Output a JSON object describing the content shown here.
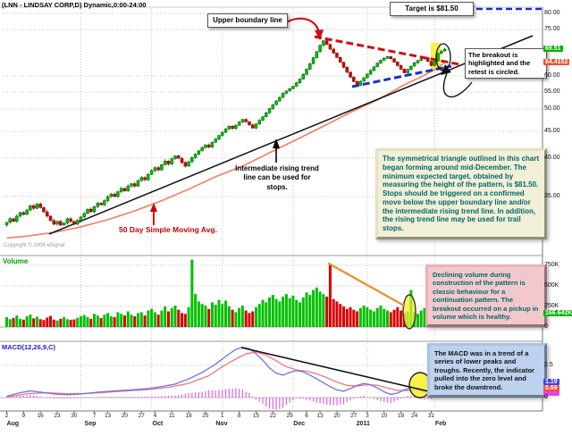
{
  "title": "(LNN - LINDSAY CORP,D) Dynamic,0:00-24:00",
  "copyright": "Copyright © 2006 eSignal.",
  "panes": {
    "volume_label": "Volume",
    "macd_label": "MACD(12,26,9,C)"
  },
  "annotations": {
    "upper_boundary": "Upper boundary line",
    "target": "Target is $81.50",
    "breakout": "The breakout is highlighted and the retest is circled.",
    "triangle_note": "The symmetrical triangle outlined in this chart began forming around mid-December. The minimum expected target, obtained by measuring the height of the pattern, is $81.50. Stops should be triggered on a confirmed move below the upper boundary line and/or the intermediate rising trend line. In addition, the rising trend line may be used for trail stops.",
    "volume_note": "Declining volume during construction of the pattern is classic behaviour for a continuation pattern. The breakout occurred on a pickup in volume which is healthy.",
    "macd_note": "The MACD was in a trend of a series of lower peaks and troughs. Recently, the indicator pulled into the zero level and broke the downtrend.",
    "trendline_note": "Intermediate rising trend line can be used for stops.",
    "ma_note": "50 Day Simple Moving Avg."
  },
  "axes": {
    "price_labels": [
      {
        "t": "80.00",
        "p": 80,
        "grid": true
      },
      {
        "t": "75.00",
        "p": 75,
        "grid": true
      },
      {
        "t": "69.51",
        "p": 69.51,
        "hl": "green"
      },
      {
        "t": "64.4152",
        "p": 64.4152,
        "hl": "red"
      },
      {
        "t": "60.00",
        "p": 60,
        "grid": true
      },
      {
        "t": "55.00",
        "p": 55,
        "grid": true
      },
      {
        "t": "50.00",
        "p": 50,
        "grid": true
      },
      {
        "t": "45.00",
        "p": 45,
        "grid": true
      },
      {
        "t": "40.00",
        "p": 40,
        "grid": true
      },
      {
        "t": "35.00",
        "p": 35,
        "grid": true
      }
    ],
    "volume_labels": [
      {
        "t": "750K",
        "v": 750,
        "grid": true
      },
      {
        "t": "500K",
        "v": 500,
        "grid": true
      },
      {
        "t": "250K",
        "v": 250,
        "grid": true
      },
      {
        "t": "166.642K",
        "v": 166.642,
        "hl": "green"
      },
      {
        "t": "0",
        "v": 0
      }
    ],
    "macd_labels": [
      {
        "t": "2.5",
        "v": 2.5,
        "grid": true
      },
      {
        "t": "",
        "v": 0.42,
        "hl": "magenta"
      },
      {
        "t": "1.19",
        "v": 1.19,
        "hl": "blue"
      },
      {
        "t": "0.69",
        "v": 0.69,
        "hl": "red"
      },
      {
        "t": "0",
        "v": 0
      }
    ],
    "day_ticks": [
      {
        "t": "2",
        "i": 0
      },
      {
        "t": "9",
        "i": 5
      },
      {
        "t": "16",
        "i": 10
      },
      {
        "t": "23",
        "i": 15
      },
      {
        "t": "30",
        "i": 20
      },
      {
        "t": "7",
        "i": 26
      },
      {
        "t": "13",
        "i": 30
      },
      {
        "t": "20",
        "i": 35
      },
      {
        "t": "27",
        "i": 40
      },
      {
        "t": "4",
        "i": 44
      },
      {
        "t": "11",
        "i": 49
      },
      {
        "t": "18",
        "i": 54
      },
      {
        "t": "25",
        "i": 59
      },
      {
        "t": "1",
        "i": 64
      },
      {
        "t": "8",
        "i": 69
      },
      {
        "t": "15",
        "i": 74
      },
      {
        "t": "22",
        "i": 79
      },
      {
        "t": "29",
        "i": 84
      },
      {
        "t": "6",
        "i": 89
      },
      {
        "t": "13",
        "i": 93
      },
      {
        "t": "20",
        "i": 98
      },
      {
        "t": "27",
        "i": 103
      },
      {
        "t": "3",
        "i": 107
      },
      {
        "t": "10",
        "i": 112
      },
      {
        "t": "18",
        "i": 117
      },
      {
        "t": "24",
        "i": 121
      },
      {
        "t": "31",
        "i": 126
      }
    ],
    "month_ticks": [
      {
        "t": "Aug",
        "i": 1
      },
      {
        "t": "Sep",
        "i": 24
      },
      {
        "t": "Oct",
        "i": 44
      },
      {
        "t": "Nov",
        "i": 63
      },
      {
        "t": "Dec",
        "i": 86
      },
      {
        "t": "2011",
        "i": 105
      },
      {
        "t": "Feb",
        "i": 128
      }
    ]
  },
  "chart_data": {
    "type": "candlestick",
    "symbol": "LNN - LINDSAY CORP",
    "interval": "Daily",
    "last_price": 69.51,
    "ma50_value": 64.4152,
    "last_volume_k": 166.642,
    "macd_value": 1.19,
    "signal_value": 0.69,
    "target_price": 81.5,
    "price_scale_anchors": [
      [
        80,
        15
      ],
      [
        75,
        33
      ],
      [
        69.51,
        55
      ],
      [
        64.4152,
        70
      ],
      [
        60,
        85
      ],
      [
        55,
        103
      ],
      [
        50,
        122
      ],
      [
        45,
        147
      ],
      [
        40,
        177
      ],
      [
        35,
        220
      ]
    ],
    "closes": [
      32.0,
      32.4,
      32.1,
      32.7,
      33.1,
      32.9,
      33.4,
      33.9,
      33.6,
      34.1,
      33.7,
      33.2,
      32.7,
      32.2,
      31.8,
      32.1,
      31.7,
      31.9,
      32.4,
      32.1,
      31.8,
      32.2,
      32.6,
      33.0,
      33.5,
      33.2,
      33.8,
      34.2,
      34.0,
      34.5,
      35.0,
      35.3,
      35.0,
      35.6,
      36.0,
      35.7,
      36.3,
      36.6,
      36.3,
      37.0,
      37.4,
      37.1,
      37.8,
      38.3,
      38.7,
      38.4,
      39.1,
      39.6,
      39.2,
      39.9,
      40.4,
      40.0,
      39.4,
      38.9,
      39.5,
      40.1,
      40.7,
      41.3,
      41.9,
      42.4,
      42.0,
      42.9,
      43.5,
      44.2,
      44.8,
      45.5,
      46.1,
      45.6,
      46.3,
      47.0,
      47.6,
      47.1,
      46.4,
      45.7,
      46.6,
      47.4,
      48.2,
      49.1,
      50.1,
      51.2,
      52.3,
      53.4,
      54.6,
      55.3,
      56.0,
      56.8,
      57.8,
      59.0,
      60.5,
      62.2,
      64.0,
      66.2,
      68.5,
      70.5,
      71.8,
      70.8,
      69.5,
      68.0,
      66.3,
      64.5,
      62.8,
      61.2,
      59.6,
      58.2,
      57.1,
      58.3,
      59.4,
      60.6,
      61.8,
      63.0,
      64.2,
      65.3,
      66.0,
      66.6,
      65.8,
      64.6,
      63.4,
      62.2,
      61.0,
      62.1,
      63.2,
      64.3,
      65.2,
      65.8,
      66.2,
      64.8,
      63.4,
      65.0,
      67.8,
      68.8,
      69.51
    ],
    "volumes_k": [
      120,
      95,
      110,
      140,
      100,
      90,
      130,
      150,
      105,
      125,
      95,
      85,
      115,
      135,
      90,
      80,
      100,
      120,
      95,
      88,
      92,
      110,
      130,
      145,
      120,
      100,
      160,
      140,
      110,
      150,
      170,
      130,
      120,
      180,
      160,
      140,
      190,
      150,
      130,
      170,
      180,
      140,
      200,
      220,
      180,
      150,
      200,
      250,
      190,
      230,
      260,
      210,
      170,
      160,
      240,
      820,
      400,
      310,
      280,
      260,
      220,
      300,
      270,
      330,
      280,
      320,
      250,
      210,
      180,
      230,
      260,
      200,
      170,
      190,
      240,
      280,
      330,
      300,
      360,
      390,
      340,
      310,
      370,
      400,
      350,
      380,
      330,
      300,
      360,
      420,
      390,
      450,
      480,
      430,
      400,
      370,
      760,
      340,
      310,
      280,
      250,
      220,
      240,
      210,
      190,
      230,
      260,
      240,
      210,
      190,
      230,
      260,
      220,
      200,
      180,
      210,
      240,
      200,
      170,
      190,
      450,
      180,
      160,
      200,
      230,
      260,
      170,
      280,
      340,
      260,
      167
    ],
    "ma50_points": [
      [
        0,
        30.3
      ],
      [
        6,
        30.5
      ],
      [
        14,
        30.9
      ],
      [
        22,
        31.5
      ],
      [
        30,
        32.3
      ],
      [
        38,
        33.3
      ],
      [
        46,
        34.5
      ],
      [
        54,
        35.9
      ],
      [
        62,
        37.5
      ],
      [
        70,
        38.9
      ],
      [
        78,
        40.95
      ],
      [
        86,
        43.4
      ],
      [
        94,
        46.1
      ],
      [
        102,
        49.2
      ],
      [
        110,
        52.6
      ],
      [
        118,
        57.2
      ],
      [
        123,
        59.7
      ],
      [
        127,
        62.0
      ],
      [
        130,
        64.41
      ]
    ],
    "macd_points": [
      [
        0,
        0.1
      ],
      [
        4,
        0.38
      ],
      [
        7,
        0.52
      ],
      [
        10,
        0.42
      ],
      [
        14,
        0.28
      ],
      [
        18,
        0.22
      ],
      [
        22,
        0.28
      ],
      [
        27,
        0.42
      ],
      [
        32,
        0.52
      ],
      [
        37,
        0.6
      ],
      [
        42,
        0.7
      ],
      [
        46,
        0.85
      ],
      [
        50,
        1.05
      ],
      [
        54,
        1.45
      ],
      [
        58,
        1.95
      ],
      [
        62,
        2.6
      ],
      [
        65,
        3.2
      ],
      [
        68,
        3.75
      ],
      [
        70,
        3.9
      ],
      [
        72,
        3.8
      ],
      [
        74,
        3.4
      ],
      [
        76,
        2.9
      ],
      [
        78,
        2.3
      ],
      [
        80,
        1.9
      ],
      [
        82,
        1.75
      ],
      [
        84,
        1.95
      ],
      [
        86,
        2.1
      ],
      [
        88,
        2.0
      ],
      [
        90,
        1.75
      ],
      [
        92,
        1.45
      ],
      [
        94,
        1.15
      ],
      [
        96,
        0.85
      ],
      [
        98,
        0.6
      ],
      [
        100,
        0.5
      ],
      [
        102,
        0.7
      ],
      [
        104,
        0.95
      ],
      [
        106,
        1.1
      ],
      [
        108,
        1.0
      ],
      [
        110,
        0.75
      ],
      [
        112,
        0.45
      ],
      [
        114,
        0.25
      ],
      [
        116,
        0.35
      ],
      [
        118,
        0.6
      ],
      [
        120,
        0.75
      ],
      [
        122,
        0.6
      ],
      [
        124,
        0.4
      ],
      [
        126,
        0.45
      ],
      [
        128,
        0.8
      ],
      [
        130,
        1.19
      ]
    ],
    "signal_points": [
      [
        0,
        0.05
      ],
      [
        6,
        0.3
      ],
      [
        12,
        0.38
      ],
      [
        18,
        0.3
      ],
      [
        24,
        0.32
      ],
      [
        30,
        0.42
      ],
      [
        36,
        0.52
      ],
      [
        42,
        0.62
      ],
      [
        48,
        0.8
      ],
      [
        54,
        1.1
      ],
      [
        60,
        1.7
      ],
      [
        64,
        2.4
      ],
      [
        68,
        3.0
      ],
      [
        71,
        3.4
      ],
      [
        74,
        3.55
      ],
      [
        77,
        3.3
      ],
      [
        80,
        2.85
      ],
      [
        83,
        2.4
      ],
      [
        86,
        2.15
      ],
      [
        89,
        2.05
      ],
      [
        92,
        1.85
      ],
      [
        95,
        1.55
      ],
      [
        98,
        1.2
      ],
      [
        101,
        0.95
      ],
      [
        104,
        0.9
      ],
      [
        107,
        1.0
      ],
      [
        110,
        0.95
      ],
      [
        113,
        0.75
      ],
      [
        116,
        0.55
      ],
      [
        119,
        0.55
      ],
      [
        122,
        0.65
      ],
      [
        125,
        0.55
      ],
      [
        127,
        0.55
      ],
      [
        130,
        0.69
      ]
    ],
    "overlays": {
      "trendline": [
        [
          55,
          262
        ],
        [
          596,
          40
        ]
      ],
      "upper_dashed": [
        [
          352,
          41
        ],
        [
          514,
          72
        ]
      ],
      "lower_dashed": [
        [
          394,
          97
        ],
        [
          505,
          74
        ]
      ],
      "target_dashed": [
        [
          533,
          10
        ],
        [
          606,
          10
        ]
      ],
      "volume_trend": [
        [
          368,
          295
        ],
        [
          452,
          342
        ]
      ],
      "macd_trend": [
        [
          270,
          389
        ],
        [
          505,
          444
        ]
      ]
    },
    "highlights": {
      "price_band": [
        482,
        48,
        11,
        30
      ],
      "price_circle": [
        496,
        64,
        8,
        15
      ],
      "volume_circle": [
        458,
        349,
        7,
        19
      ],
      "macd_circle": [
        470,
        431,
        12,
        14
      ]
    }
  },
  "colors": {
    "up": "#00C000",
    "up_edge": "#006000",
    "down": "#D80000",
    "down_edge": "#800000",
    "ma": "#F08060",
    "trendline": "#111111",
    "dashed_red": "#CC1010",
    "dashed_blue": "#2030C0",
    "orange": "#F09030",
    "hist": "#E060E0",
    "macd_line": "#7070F0",
    "signal_line": "#F07878",
    "highlight_yellow": "#F5F02C",
    "grid": "#c4c4c4"
  }
}
